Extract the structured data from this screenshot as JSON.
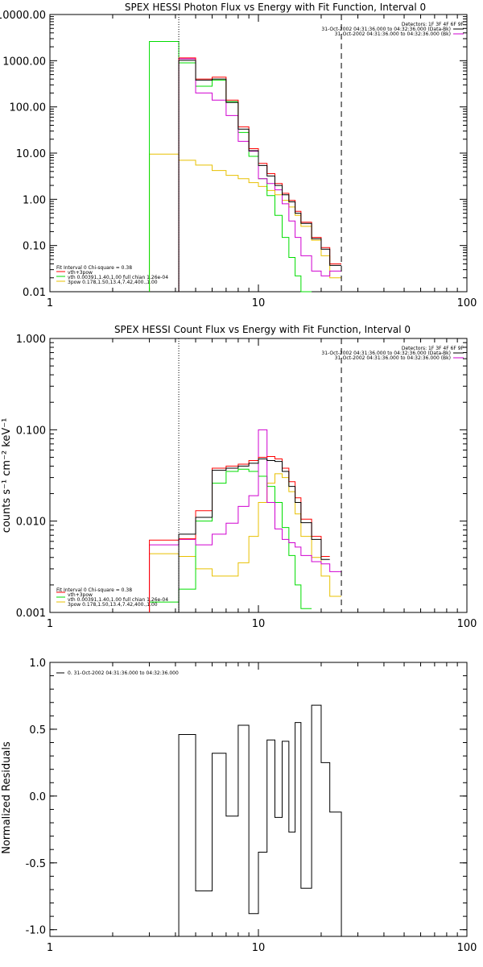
{
  "chart_data": [
    {
      "type": "line",
      "title": "SPEX HESSI Photon Flux vs Energy with Fit Function, Interval 0",
      "xscale": "log",
      "yscale": "log",
      "xlim": [
        1,
        100
      ],
      "ylim": [
        0.01,
        10000
      ],
      "xticks": [
        "1",
        "10",
        "100"
      ],
      "yticks": [
        "0.01",
        "0.10",
        "1.00",
        "10.00",
        "100.00",
        "1000.00",
        "10000.00"
      ],
      "vlines": {
        "dotted": 4.15,
        "dashed": 25
      },
      "legend_right": [
        "Detectors: 1F 3F 4F 6F 9F",
        "31-Oct-2002 04:31:36.000 to 04:32:36.000 (Data-Bk)",
        "31-Oct-2002 04:31:36.000 to 04:32:36.000 (Bk)"
      ],
      "legend_left": [
        "Fit Interval 0   Chi-square = 0.38",
        "vth+3pow",
        "vth 0.00391,1.40,1.00  full chian 1.26e-04",
        "3pow 0.178,1.50,13.4,7.42,400.,1.00"
      ],
      "legend_colors": [
        "#ff0000",
        "#00dd00",
        "#e8c000"
      ],
      "series_colors": {
        "data": "#000000",
        "bk": "#d000d0",
        "total": "#ff0000",
        "thermal": "#00dd00",
        "pow": "#e8c000"
      },
      "edges": [
        3.0,
        4.15,
        5.0,
        6.0,
        7.0,
        8.0,
        9.0,
        10.0,
        11.0,
        12.0,
        13.0,
        14.0,
        15.0,
        16.0,
        18.0,
        20.0,
        22.0,
        25.0
      ],
      "series": [
        {
          "key": "pow",
          "start": 0,
          "values": [
            9.5,
            7.0,
            5.5,
            4.2,
            3.3,
            2.8,
            2.3,
            1.9,
            1.55,
            1.25,
            0.95,
            0.68,
            0.45,
            0.26,
            0.13,
            0.06,
            0.02
          ]
        },
        {
          "key": "thermal",
          "start": 0,
          "values": [
            2600,
            900,
            280,
            380,
            130,
            28,
            8.5,
            2.8,
            1.2,
            0.45,
            0.15,
            0.055,
            0.022,
            0.01
          ]
        },
        {
          "key": "bk",
          "start": 1,
          "values": [
            1100,
            200,
            140,
            65,
            18,
            11,
            2.8,
            2.2,
            1.6,
            0.8,
            0.34,
            0.15,
            0.06,
            0.028,
            0.022,
            0.028
          ]
        },
        {
          "key": "total",
          "start": 1,
          "values": [
            1150,
            400,
            440,
            140,
            37,
            12.5,
            6.0,
            3.6,
            2.2,
            1.35,
            0.95,
            0.55,
            0.32,
            0.15,
            0.09,
            0.04
          ]
        },
        {
          "key": "data",
          "start": 1,
          "values": [
            1020,
            380,
            400,
            125,
            33,
            11.3,
            5.4,
            3.2,
            2.0,
            1.25,
            0.88,
            0.5,
            0.3,
            0.14,
            0.083,
            0.037
          ]
        }
      ]
    },
    {
      "type": "line",
      "title": "SPEX HESSI Count Flux vs Energy with Fit Function, Interval 0",
      "ylabel": "counts s⁻¹ cm⁻² keV⁻¹",
      "xscale": "log",
      "yscale": "log",
      "xlim": [
        1,
        100
      ],
      "ylim": [
        0.001,
        1.0
      ],
      "xticks": [
        "1",
        "10",
        "100"
      ],
      "yticks": [
        "0.001",
        "0.010",
        "0.100",
        "1.000"
      ],
      "vlines": {
        "dotted": 4.15,
        "dashed": 25
      },
      "legend_right": [
        "Detectors: 1F 3F 4F 6F 9F",
        "31-Oct-2002 04:31:36.000 to 04:32:36.000 (Data-Bk)",
        "31-Oct-2002 04:31:36.000 to 04:32:36.000 (Bk)"
      ],
      "legend_left": [
        "Fit Interval 0   Chi-square = 0.38",
        "vth+3pow",
        "vth 0.00391,1.40,1.00  full chian 1.26e-04",
        "3pow 0.178,1.50,13.4,7.42,400.,1.00"
      ],
      "legend_colors": [
        "#ff0000",
        "#00dd00",
        "#e8c000"
      ],
      "series_colors": {
        "data": "#000000",
        "bk": "#d000d0",
        "total": "#ff0000",
        "thermal": "#00dd00",
        "pow": "#e8c000"
      },
      "edges": [
        3.0,
        4.15,
        5.0,
        6.0,
        7.0,
        8.0,
        9.0,
        10.0,
        11.0,
        12.0,
        13.0,
        14.0,
        15.0,
        16.0,
        18.0,
        20.0,
        22.0,
        25.0
      ],
      "series": [
        {
          "key": "pow",
          "start": 0,
          "values": [
            0.0044,
            0.0041,
            0.003,
            0.0025,
            0.0025,
            0.0035,
            0.0068,
            0.016,
            0.026,
            0.033,
            0.03,
            0.021,
            0.012,
            0.0068,
            0.004,
            0.0025,
            0.0015
          ]
        },
        {
          "key": "thermal",
          "start": 0,
          "values": [
            0.0013,
            0.0018,
            0.01,
            0.026,
            0.035,
            0.037,
            0.035,
            0.031,
            0.024,
            0.016,
            0.0085,
            0.0042,
            0.002,
            0.0011
          ]
        },
        {
          "key": "bk",
          "start": 0,
          "values": [
            0.0055,
            0.0063,
            0.0055,
            0.0072,
            0.0095,
            0.0145,
            0.019,
            0.1,
            0.016,
            0.0082,
            0.0063,
            0.0058,
            0.0052,
            0.0042,
            0.0036,
            0.0034,
            0.0028
          ]
        },
        {
          "key": "total",
          "start": 0,
          "values": [
            0.0062,
            0.0064,
            0.013,
            0.038,
            0.04,
            0.042,
            0.046,
            0.05,
            0.051,
            0.048,
            0.038,
            0.027,
            0.018,
            0.0105,
            0.0068,
            0.0041
          ]
        },
        {
          "key": "data",
          "start": 1,
          "values": [
            0.0072,
            0.011,
            0.036,
            0.038,
            0.04,
            0.043,
            0.048,
            0.046,
            0.045,
            0.035,
            0.024,
            0.016,
            0.0096,
            0.0063,
            0.0038
          ]
        }
      ]
    },
    {
      "type": "line",
      "ylabel": "Normalized Residuals",
      "xscale": "log",
      "yscale": "linear",
      "xlim": [
        1,
        100
      ],
      "ylim": [
        -1.05,
        1.0
      ],
      "xticks": [
        "1",
        "10",
        "100"
      ],
      "yticks": [
        {
          "v": -1.0,
          "label": "-1.0"
        },
        {
          "v": -0.5,
          "label": "-0.5"
        },
        {
          "v": 0.0,
          "label": "0.0"
        },
        {
          "v": 0.5,
          "label": "0.5"
        },
        {
          "v": 1.0,
          "label": "1.0"
        }
      ],
      "legend": "0. 31-Oct-2002 04:31:36.000 to 04:32:36.000",
      "edges": [
        4.15,
        5.0,
        6.0,
        7.0,
        8.0,
        9.0,
        10.0,
        11.0,
        12.0,
        13.0,
        14.0,
        15.0,
        16.0,
        18.0,
        20.0,
        22.0,
        25.0
      ],
      "values": [
        0.46,
        -0.71,
        0.32,
        -0.15,
        0.53,
        -0.88,
        -0.42,
        0.42,
        -0.16,
        0.41,
        -0.27,
        0.55,
        -0.69,
        0.68,
        0.25,
        -0.12
      ]
    }
  ]
}
